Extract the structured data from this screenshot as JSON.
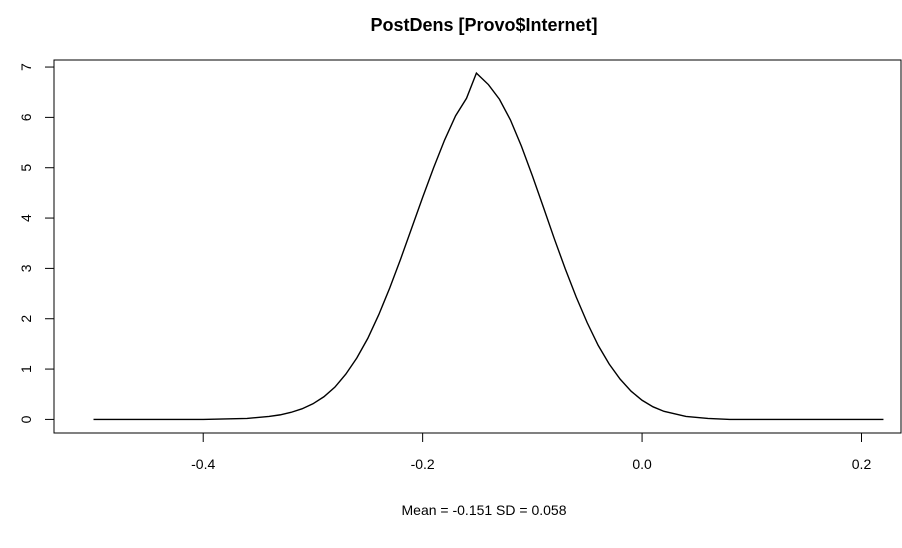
{
  "chart_data": {
    "type": "line",
    "title": "PostDens [Provo$Internet]",
    "subtitle": "Mean = -0.151 SD = 0.058",
    "xlabel": "",
    "ylabel": "",
    "xlim": [
      -0.536,
      0.236
    ],
    "ylim": [
      -0.27,
      7.14
    ],
    "x_ticks": [
      -0.4,
      -0.2,
      0.0,
      0.2
    ],
    "x_tick_labels": [
      "-0.4",
      "-0.2",
      "0.0",
      "0.2"
    ],
    "y_ticks": [
      0,
      1,
      2,
      3,
      4,
      5,
      6,
      7
    ],
    "y_tick_labels": [
      "0",
      "1",
      "2",
      "3",
      "4",
      "5",
      "6",
      "7"
    ],
    "grid": false,
    "legend": "none",
    "line_color": "#000000",
    "series": [
      {
        "x": [
          -0.5,
          -0.45,
          -0.4,
          -0.38,
          -0.36,
          -0.35,
          -0.34,
          -0.33,
          -0.32,
          -0.31,
          -0.3,
          -0.29,
          -0.28,
          -0.27,
          -0.26,
          -0.25,
          -0.24,
          -0.23,
          -0.22,
          -0.21,
          -0.2,
          -0.19,
          -0.18,
          -0.17,
          -0.16,
          -0.151,
          -0.14,
          -0.13,
          -0.12,
          -0.11,
          -0.1,
          -0.09,
          -0.08,
          -0.07,
          -0.06,
          -0.05,
          -0.04,
          -0.03,
          -0.02,
          -0.01,
          0.0,
          0.01,
          0.02,
          0.04,
          0.06,
          0.08,
          0.1,
          0.15,
          0.22
        ],
        "y": [
          0.0,
          0.0,
          0.0,
          0.01,
          0.02,
          0.04,
          0.06,
          0.09,
          0.14,
          0.21,
          0.31,
          0.45,
          0.64,
          0.9,
          1.22,
          1.61,
          2.08,
          2.61,
          3.19,
          3.8,
          4.41,
          5.0,
          5.55,
          6.03,
          6.38,
          6.88,
          6.65,
          6.36,
          5.95,
          5.43,
          4.84,
          4.22,
          3.59,
          2.99,
          2.43,
          1.92,
          1.47,
          1.1,
          0.8,
          0.56,
          0.38,
          0.25,
          0.16,
          0.06,
          0.02,
          0.0,
          0.0,
          0.0,
          0.0
        ]
      }
    ]
  }
}
